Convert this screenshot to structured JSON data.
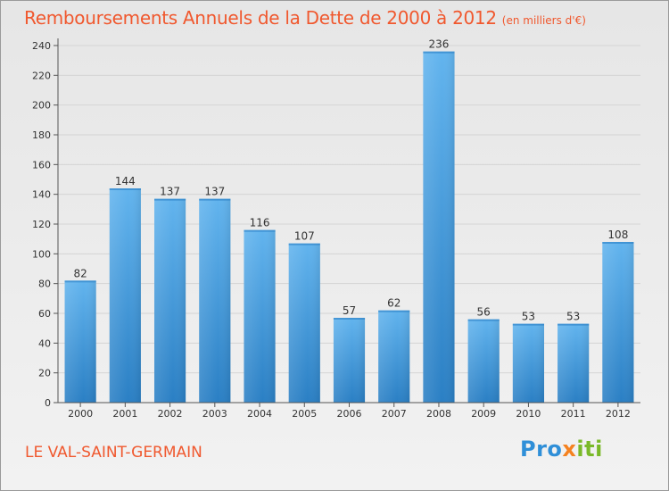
{
  "title": "Remboursements Annuels de la Dette de 2000 à 2012",
  "title_unit": "(en milliers d'€)",
  "city": "LE VAL-SAINT-GERMAIN",
  "logo": {
    "part1": "Pro",
    "part2": "x",
    "part3": "iti"
  },
  "colors": {
    "title": "#f0582e",
    "bar_light": "#62b4ee",
    "bar_dark": "#2a7fc4",
    "axis": "#555555",
    "grid": "#d4d4d4"
  },
  "chart_data": {
    "type": "bar",
    "categories": [
      "2000",
      "2001",
      "2002",
      "2003",
      "2004",
      "2005",
      "2006",
      "2007",
      "2008",
      "2009",
      "2010",
      "2011",
      "2012"
    ],
    "values": [
      82,
      144,
      137,
      137,
      116,
      107,
      57,
      62,
      236,
      56,
      53,
      53,
      108
    ],
    "title": "Remboursements Annuels de la Dette de 2000 à 2012",
    "xlabel": "",
    "ylabel": "",
    "ylim": [
      0,
      240
    ],
    "yticks": [
      0,
      20,
      40,
      60,
      80,
      100,
      120,
      140,
      160,
      180,
      200,
      220,
      240
    ],
    "grid": true,
    "data_labels": true
  }
}
